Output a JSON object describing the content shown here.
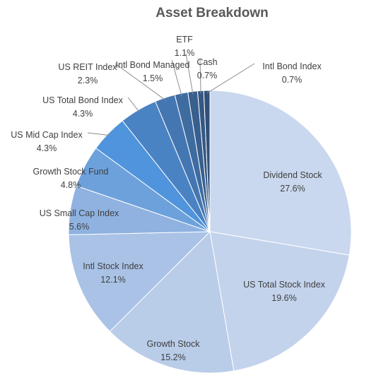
{
  "chart_data": {
    "type": "pie",
    "title": "Asset Breakdown",
    "slices": [
      {
        "label": "Dividend Stock",
        "value": 27.6,
        "display": "27.6%",
        "color": "#c9d8ee"
      },
      {
        "label": "US Total Stock Index",
        "value": 19.6,
        "display": "19.6%",
        "color": "#c3d3ec"
      },
      {
        "label": "Growth  Stock",
        "value": 15.2,
        "display": "15.2%",
        "color": "#b9cce8"
      },
      {
        "label": "Intl Stock Index",
        "value": 12.1,
        "display": "12.1%",
        "color": "#a9c2e6"
      },
      {
        "label": "US Small Cap Index",
        "value": 5.6,
        "display": "5.6%",
        "color": "#8fb2e0"
      },
      {
        "label": "Growth Stock Fund",
        "value": 4.8,
        "display": "4.8%",
        "color": "#6da1dc"
      },
      {
        "label": "US Mid Cap Index",
        "value": 4.3,
        "display": "4.3%",
        "color": "#4f94dc"
      },
      {
        "label": "US Total Bond Index",
        "value": 4.3,
        "display": "4.3%",
        "color": "#4a83c4"
      },
      {
        "label": "US REIT Index",
        "value": 2.3,
        "display": "2.3%",
        "color": "#4477b2"
      },
      {
        "label": "Intl Bond Managed",
        "value": 1.5,
        "display": "1.5%",
        "color": "#3e6ca1"
      },
      {
        "label": "ETF",
        "value": 1.1,
        "display": "1.1%",
        "color": "#385f8d"
      },
      {
        "label": "Cash",
        "value": 0.7,
        "display": "0.7%",
        "color": "#345883"
      },
      {
        "label": "Intl Bond Index",
        "value": 0.7,
        "display": "0.7%",
        "color": "#30507a"
      }
    ]
  }
}
